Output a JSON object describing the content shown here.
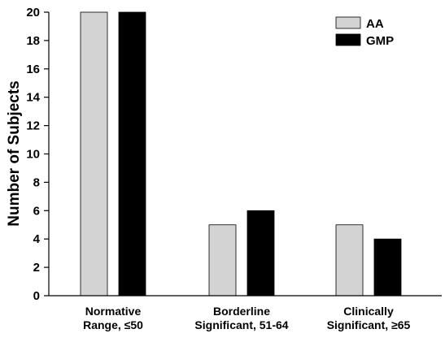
{
  "chart_data": {
    "type": "bar",
    "title": "",
    "xlabel": "",
    "ylabel": "Number of Subjects",
    "ylim": [
      0,
      20
    ],
    "yticks": [
      0,
      2,
      4,
      6,
      8,
      10,
      12,
      14,
      16,
      18,
      20
    ],
    "grid": false,
    "legend_position": "top-right",
    "categories": [
      [
        "Normative",
        "Range, ≤50"
      ],
      [
        "Borderline",
        "Significant, 51-64"
      ],
      [
        "Clinically",
        "Significant, ≥65"
      ]
    ],
    "series": [
      {
        "name": "AA",
        "values": [
          20,
          5,
          5
        ],
        "color": "#d3d3d3"
      },
      {
        "name": "GMP",
        "values": [
          20,
          6,
          4
        ],
        "color": "#000000"
      }
    ]
  }
}
